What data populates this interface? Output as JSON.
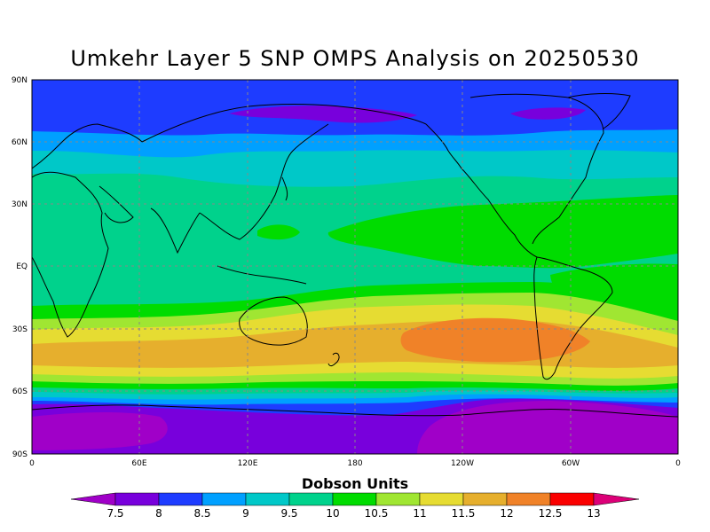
{
  "title": "Umkehr Layer 5 SNP OMPS Analysis on 20250530",
  "lat_labels": [
    "90N",
    "60N",
    "30N",
    "EQ",
    "30S",
    "60S",
    "90S"
  ],
  "lon_labels": [
    "0",
    "60E",
    "120E",
    "180",
    "120W",
    "60W",
    "0"
  ],
  "colorbar": {
    "title": "Dobson Units",
    "labels": [
      "7.5",
      "8",
      "8.5",
      "9",
      "9.5",
      "10",
      "10.5",
      "11",
      "11.5",
      "12",
      "12.5",
      "13"
    ],
    "colors": [
      "#a000c8",
      "#7800dc",
      "#1e3cff",
      "#00a0ff",
      "#00c8c8",
      "#00d28c",
      "#00dc00",
      "#a0e632",
      "#e6dc32",
      "#e6af2d",
      "#f08228",
      "#fa0000",
      "#dc0078"
    ]
  },
  "colors": {
    "band_75": "#a000c8",
    "band_8": "#7800dc",
    "band_85": "#1e3cff",
    "band_9": "#00a0ff",
    "band_95": "#00c8c8",
    "band_10": "#00d28c",
    "band_105": "#00dc00",
    "band_11": "#a0e632",
    "band_115": "#e6dc32",
    "band_12": "#e6af2d",
    "band_125": "#f08228"
  }
}
